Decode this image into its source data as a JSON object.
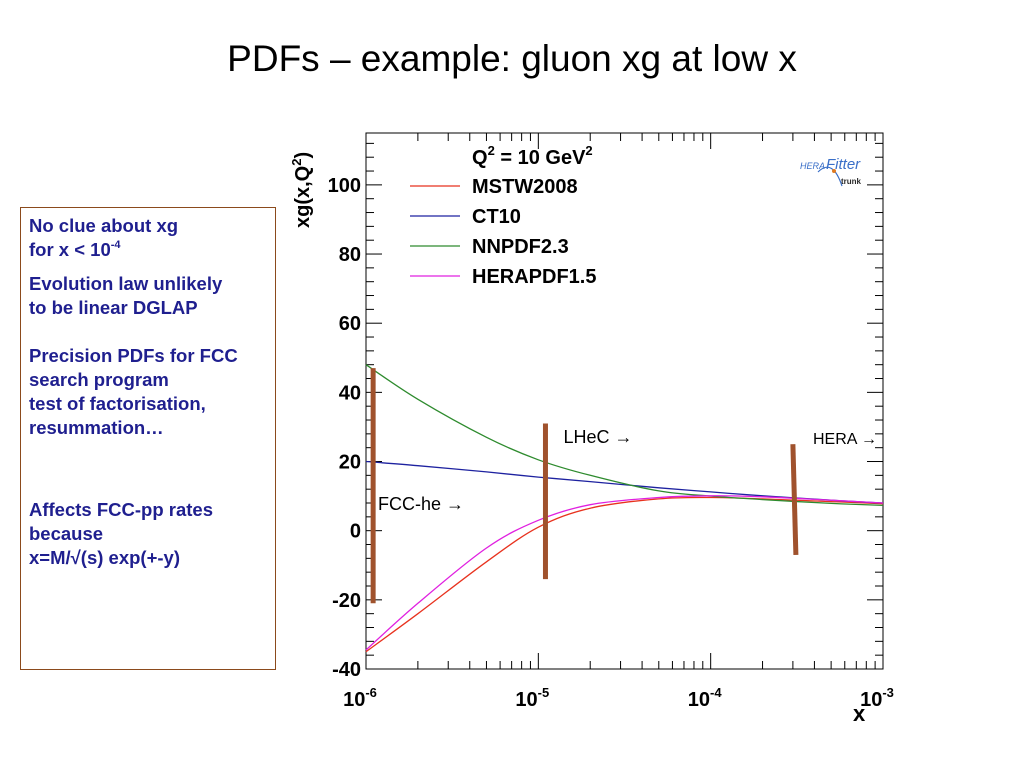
{
  "slide": {
    "title": "PDFs – example:  gluon xg at low x"
  },
  "notes": {
    "l1": "No clue about xg",
    "l2_pre": "for x < 10",
    "l2_sup": "-4",
    "p2a": "Evolution law unlikely",
    "p2b": "to be linear DGLAP",
    "p3a": "Precision PDFs for FCC",
    "p3b": "search program",
    "p3c": "test of factorisation,",
    "p3d": "resummation…",
    "p4a": "Affects FCC-pp rates",
    "p4b": "because",
    "p4c": "x=M/√(s) exp(+-y)"
  },
  "logo": {
    "hera": "HERA",
    "fitter": "Fitter",
    "trunk": "trunk"
  },
  "chart_data": {
    "type": "line",
    "x_scale": "log",
    "xlim": [
      1e-06,
      0.001
    ],
    "ylim": [
      -40,
      115
    ],
    "xlabel": "x",
    "ylabel": "xg(x,Q²)",
    "ylabel_base": "xg(x,Q",
    "ylabel_sup": "2",
    "ylabel_end": ")",
    "yticks": [
      -40,
      -20,
      0,
      20,
      40,
      60,
      80,
      100
    ],
    "ytick_labels": [
      "-40",
      "-20",
      "0",
      "20",
      "40",
      "60",
      "80",
      "100"
    ],
    "xticks": [
      {
        "value": 1e-06,
        "base": "10",
        "exp": "-6"
      },
      {
        "value": 1e-05,
        "base": "10",
        "exp": "-5"
      },
      {
        "value": 0.0001,
        "base": "10",
        "exp": "-4"
      },
      {
        "value": 0.001,
        "base": "10",
        "exp": "-3"
      }
    ],
    "legend": {
      "header_pre": "Q",
      "header_sup": "2",
      "header_post": " = 10 GeV",
      "header_sup2": "2",
      "placement": "top-left"
    },
    "series": [
      {
        "name": "MSTW2008",
        "color": "#e8321e",
        "x": [
          1e-06,
          2e-06,
          5e-06,
          1e-05,
          2e-05,
          5e-05,
          0.0001,
          0.0002,
          0.0005,
          0.001
        ],
        "y": [
          -35,
          -24,
          -9,
          1,
          6.5,
          9.2,
          9.6,
          9.2,
          8.4,
          7.8
        ]
      },
      {
        "name": "CT10",
        "color": "#1e22a0",
        "x": [
          1e-06,
          2e-06,
          5e-06,
          1e-05,
          2e-05,
          5e-05,
          0.0001,
          0.0002,
          0.0005,
          0.001
        ],
        "y": [
          20,
          18.8,
          17,
          15.5,
          14.2,
          12.4,
          11.2,
          10.1,
          8.8,
          8
        ]
      },
      {
        "name": "NNPDF2.3",
        "color": "#2e8b2e",
        "x": [
          1e-06,
          2e-06,
          5e-06,
          1e-05,
          2e-05,
          5e-05,
          0.0001,
          0.0002,
          0.0005,
          0.001
        ],
        "y": [
          48,
          38,
          27,
          20.5,
          16,
          11.5,
          10,
          9,
          7.9,
          7.3
        ]
      },
      {
        "name": "HERAPDF1.5",
        "color": "#e020e0",
        "x": [
          1e-06,
          2e-06,
          5e-06,
          1e-05,
          2e-05,
          5e-05,
          0.0001,
          0.0002,
          0.0005,
          0.001
        ],
        "y": [
          -34.5,
          -21,
          -5,
          3,
          7.5,
          9.6,
          10.1,
          9.8,
          8.8,
          8
        ]
      }
    ],
    "markers": [
      {
        "label": "FCC-he",
        "x": 1.1e-06,
        "y_low": -21,
        "y_high": 47
      },
      {
        "label": "LHeC",
        "x": 1.1e-05,
        "y_low": -14,
        "y_high": 31
      },
      {
        "label": "HERA",
        "x": 0.0003,
        "y_low": -7,
        "y_high": 25
      }
    ],
    "marker_color": "#a0522d",
    "arrow": "→"
  }
}
